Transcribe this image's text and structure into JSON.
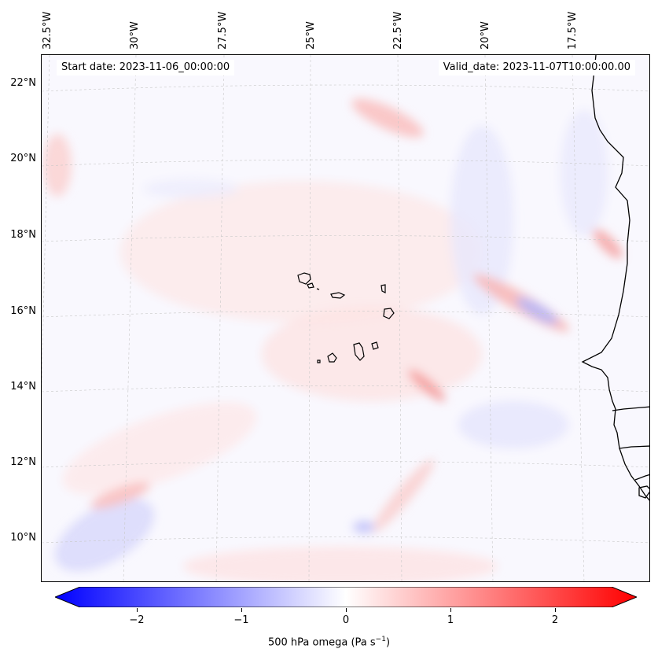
{
  "header": {
    "start_date": "Start date: 2023-11-06_00:00:00",
    "valid_date": "Valid_date: 2023-11-07T10:00:00.00"
  },
  "axes": {
    "lon_labels": [
      "32.5°W",
      "30°W",
      "27.5°W",
      "25°W",
      "22.5°W",
      "20°W",
      "17.5°W"
    ],
    "lat_labels": [
      "22°N",
      "20°N",
      "18°N",
      "16°N",
      "14°N",
      "12°N",
      "10°N"
    ],
    "gridlines": true
  },
  "colorbar": {
    "ticks": [
      "−2",
      "−1",
      "0",
      "1",
      "2"
    ],
    "label": "500 hPa omega (Pa s",
    "label_sup": "−1",
    "label_end": ")",
    "range": [
      -2.6,
      2.6
    ],
    "colors": {
      "negative": "#0000ff",
      "zero": "#ffffff",
      "positive": "#ff0000"
    }
  },
  "map": {
    "field": "500 hPa omega",
    "coastline_color": "#000000",
    "features": [
      "Cape Verde islands",
      "West African coastline"
    ]
  }
}
